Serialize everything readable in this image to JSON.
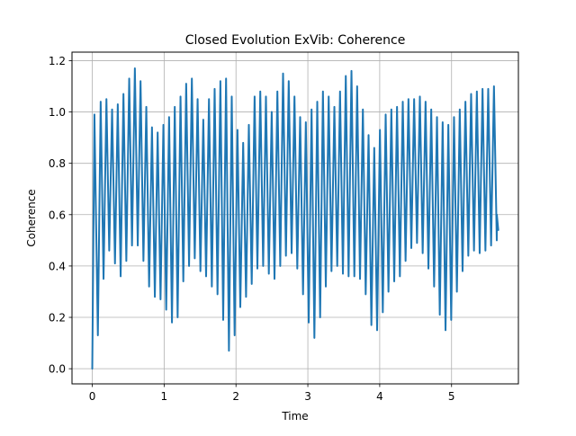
{
  "chart_data": {
    "type": "line",
    "title": "Closed Evolution ExVib: Coherence",
    "xlabel": "Time",
    "ylabel": "Coherence",
    "xlim": [
      -0.282,
      5.93
    ],
    "ylim": [
      -0.059,
      1.233
    ],
    "xticks": [
      0,
      1,
      2,
      3,
      4,
      5
    ],
    "xtick_labels": [
      "0",
      "1",
      "2",
      "3",
      "4",
      "5"
    ],
    "yticks": [
      0.0,
      0.2,
      0.4,
      0.6,
      0.8,
      1.0,
      1.2
    ],
    "ytick_labels": [
      "0.0",
      "0.2",
      "0.4",
      "0.6",
      "0.8",
      "1.0",
      "1.2"
    ],
    "grid": true,
    "legend": "none",
    "colors": {
      "line": "#1f77b4",
      "grid": "#b0b0b0",
      "axes": "#000000"
    },
    "series": [
      {
        "x": [
          0.0,
          0.03,
          0.078,
          0.117,
          0.157,
          0.197,
          0.236,
          0.276,
          0.316,
          0.355,
          0.395,
          0.434,
          0.474,
          0.514,
          0.553,
          0.593,
          0.633,
          0.672,
          0.712,
          0.752,
          0.791,
          0.831,
          0.871,
          0.91,
          0.95,
          0.99,
          1.029,
          1.069,
          1.109,
          1.148,
          1.188,
          1.228,
          1.267,
          1.307,
          1.347,
          1.386,
          1.426,
          1.466,
          1.505,
          1.545,
          1.584,
          1.624,
          1.664,
          1.703,
          1.743,
          1.783,
          1.822,
          1.862,
          1.902,
          1.941,
          1.981,
          2.021,
          2.06,
          2.1,
          2.14,
          2.179,
          2.219,
          2.259,
          2.298,
          2.338,
          2.378,
          2.417,
          2.457,
          2.497,
          2.536,
          2.576,
          2.616,
          2.655,
          2.695,
          2.734,
          2.774,
          2.814,
          2.853,
          2.893,
          2.933,
          2.972,
          3.012,
          3.052,
          3.091,
          3.131,
          3.171,
          3.21,
          3.25,
          3.29,
          3.329,
          3.369,
          3.409,
          3.448,
          3.488,
          3.528,
          3.567,
          3.607,
          3.647,
          3.686,
          3.726,
          3.766,
          3.805,
          3.845,
          3.884,
          3.924,
          3.964,
          4.003,
          4.043,
          4.083,
          4.122,
          4.162,
          4.202,
          4.241,
          4.281,
          4.321,
          4.36,
          4.4,
          4.44,
          4.479,
          4.519,
          4.559,
          4.598,
          4.638,
          4.678,
          4.717,
          4.757,
          4.797,
          4.836,
          4.876,
          4.916,
          4.955,
          4.995,
          5.034,
          5.074,
          5.114,
          5.153,
          5.193,
          5.233,
          5.272,
          5.312,
          5.352,
          5.391,
          5.431,
          5.471,
          5.51,
          5.55,
          5.59,
          5.629,
          5.63,
          5.65
        ],
        "y": [
          0.0,
          0.99,
          0.13,
          1.04,
          0.35,
          1.05,
          0.46,
          1.01,
          0.41,
          1.03,
          0.36,
          1.07,
          0.42,
          1.13,
          0.48,
          1.17,
          0.48,
          1.12,
          0.42,
          1.02,
          0.32,
          0.94,
          0.28,
          0.92,
          0.27,
          0.95,
          0.23,
          0.98,
          0.18,
          1.02,
          0.2,
          1.06,
          0.34,
          1.11,
          0.4,
          1.13,
          0.43,
          1.05,
          0.38,
          0.97,
          0.36,
          1.05,
          0.32,
          1.09,
          0.29,
          1.12,
          0.19,
          1.13,
          0.07,
          1.06,
          0.13,
          0.93,
          0.24,
          0.88,
          0.28,
          0.95,
          0.33,
          1.06,
          0.39,
          1.08,
          0.4,
          1.06,
          0.37,
          1.0,
          0.35,
          1.08,
          0.4,
          1.15,
          0.44,
          1.12,
          0.45,
          1.06,
          0.39,
          0.98,
          0.29,
          0.96,
          0.18,
          1.01,
          0.12,
          1.04,
          0.2,
          1.08,
          0.32,
          1.06,
          0.38,
          1.02,
          0.4,
          1.08,
          0.37,
          1.14,
          0.36,
          1.16,
          0.36,
          1.1,
          0.35,
          1.01,
          0.29,
          0.91,
          0.17,
          0.86,
          0.15,
          0.93,
          0.22,
          0.99,
          0.3,
          1.01,
          0.34,
          1.02,
          0.36,
          1.04,
          0.42,
          1.05,
          0.47,
          1.05,
          0.49,
          1.06,
          0.45,
          1.04,
          0.39,
          1.01,
          0.32,
          0.98,
          0.21,
          0.96,
          0.15,
          0.95,
          0.19,
          0.98,
          0.3,
          1.01,
          0.38,
          1.04,
          0.44,
          1.07,
          0.46,
          1.08,
          0.45,
          1.09,
          0.46,
          1.09,
          0.48,
          1.1,
          0.5,
          0.6,
          0.54
        ]
      }
    ]
  }
}
